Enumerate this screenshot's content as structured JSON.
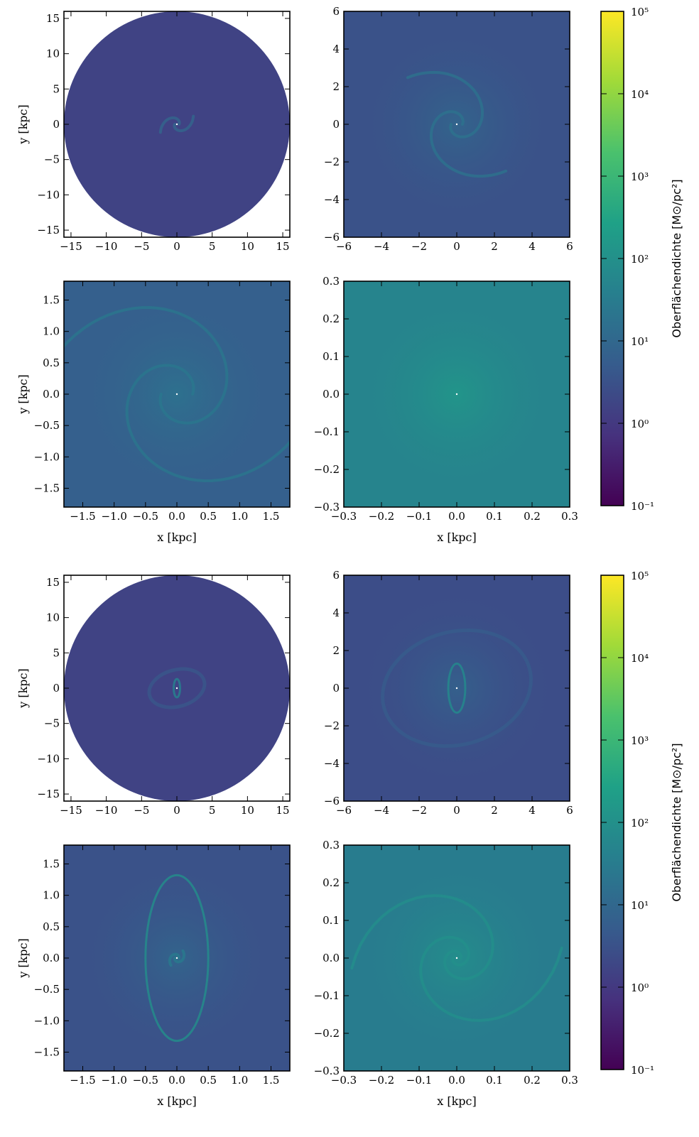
{
  "figure": {
    "colorbar_label": "Oberflächendichte [M⊙/pc²]",
    "colorbar_ticks": [
      "10⁻¹",
      "10⁰",
      "10¹",
      "10²",
      "10³",
      "10⁴",
      "10⁵"
    ],
    "colormap": [
      "#440154",
      "#46327e",
      "#365c8d",
      "#277f8e",
      "#1fa187",
      "#4ac16d",
      "#a0da39",
      "#fde725"
    ],
    "colorbar_range_log10": [
      -1,
      5
    ],
    "xlabel": "x [kpc]",
    "ylabel": "y [kpc]"
  },
  "chart_data": [
    {
      "type": "heatmap",
      "group": "top",
      "panel": "overview",
      "xlim": [
        -16,
        16
      ],
      "ylim": [
        -16,
        16
      ],
      "disk_radius": 16,
      "xticks": [
        -15,
        -10,
        -5,
        0,
        5,
        10,
        15
      ],
      "xtick_labels": [
        "−15",
        "−10",
        "−5",
        "0",
        "5",
        "10",
        "15"
      ],
      "yticks": [
        -15,
        -10,
        -5,
        0,
        5,
        10,
        15
      ],
      "ytick_labels": [
        "−15",
        "−10",
        "−5",
        "0",
        "5",
        "10",
        "15"
      ],
      "show_xlabel": false,
      "show_ylabel": true,
      "background_log10": 0.2,
      "features": [
        {
          "kind": "spiral",
          "arms": 2,
          "r_start": 0.3,
          "r_end": 2.6,
          "pitch": 0.6,
          "log10": 1.0
        }
      ]
    },
    {
      "type": "heatmap",
      "group": "top",
      "panel": "zoom-6kpc",
      "xlim": [
        -6,
        6
      ],
      "ylim": [
        -6,
        6
      ],
      "xticks": [
        -6,
        -4,
        -2,
        0,
        2,
        4,
        6
      ],
      "xtick_labels": [
        "−6",
        "−4",
        "−2",
        "0",
        "2",
        "4",
        "6"
      ],
      "yticks": [
        -6,
        -4,
        -2,
        0,
        2,
        4,
        6
      ],
      "ytick_labels": [
        "−6",
        "−4",
        "−2",
        "0",
        "2",
        "4",
        "6"
      ],
      "show_xlabel": false,
      "show_ylabel": false,
      "background_log10": 0.5,
      "features": [
        {
          "kind": "spiral",
          "arms": 2,
          "r_start": 0.3,
          "r_end": 3.6,
          "pitch": 0.45,
          "log10": 1.3
        }
      ]
    },
    {
      "type": "heatmap",
      "group": "top",
      "panel": "zoom-1.8kpc",
      "xlim": [
        -1.8,
        1.8
      ],
      "ylim": [
        -1.8,
        1.8
      ],
      "xticks": [
        -1.5,
        -1.0,
        -0.5,
        0.0,
        0.5,
        1.0,
        1.5
      ],
      "xtick_labels": [
        "−1.5",
        "−1.0",
        "−0.5",
        "0.0",
        "0.5",
        "1.0",
        "1.5"
      ],
      "yticks": [
        -1.5,
        -1.0,
        -0.5,
        0.0,
        0.5,
        1.0,
        1.5
      ],
      "ytick_labels": [
        "−1.5",
        "−1.0",
        "−0.5",
        "0.0",
        "0.5",
        "1.0",
        "1.5"
      ],
      "show_xlabel": true,
      "show_ylabel": true,
      "background_log10": 0.8,
      "features": [
        {
          "kind": "spiral",
          "arms": 2,
          "r_start": 0.25,
          "r_end": 2.5,
          "pitch": 0.35,
          "log10": 1.4
        }
      ]
    },
    {
      "type": "heatmap",
      "group": "top",
      "panel": "zoom-0.3kpc",
      "xlim": [
        -0.3,
        0.3
      ],
      "ylim": [
        -0.3,
        0.3
      ],
      "xticks": [
        -0.3,
        -0.2,
        -0.1,
        0.0,
        0.1,
        0.2,
        0.3
      ],
      "xtick_labels": [
        "−0.3",
        "−0.2",
        "−0.1",
        "0.0",
        "0.1",
        "0.2",
        "0.3"
      ],
      "yticks": [
        -0.3,
        -0.2,
        -0.1,
        0.0,
        0.1,
        0.2,
        0.3
      ],
      "ytick_labels": [
        "−0.3",
        "−0.2",
        "−0.1",
        "0.0",
        "0.1",
        "0.2",
        "0.3"
      ],
      "show_xlabel": true,
      "show_ylabel": false,
      "background_log10": 1.7,
      "features": []
    },
    {
      "type": "heatmap",
      "group": "bottom",
      "panel": "overview",
      "xlim": [
        -16,
        16
      ],
      "ylim": [
        -16,
        16
      ],
      "disk_radius": 16,
      "xticks": [
        -15,
        -10,
        -5,
        0,
        5,
        10,
        15
      ],
      "xtick_labels": [
        "−15",
        "−10",
        "−5",
        "0",
        "5",
        "10",
        "15"
      ],
      "yticks": [
        -15,
        -10,
        -5,
        0,
        5,
        10,
        15
      ],
      "ytick_labels": [
        "−15",
        "−10",
        "−5",
        "0",
        "5",
        "10",
        "15"
      ],
      "show_xlabel": false,
      "show_ylabel": true,
      "background_log10": 0.2,
      "features": [
        {
          "kind": "ellipse",
          "rx": 0.45,
          "ry": 1.3,
          "log10": 1.6
        },
        {
          "kind": "ring",
          "rx": 4.0,
          "ry": 2.6,
          "log10": 0.9
        }
      ]
    },
    {
      "type": "heatmap",
      "group": "bottom",
      "panel": "zoom-6kpc",
      "xlim": [
        -6,
        6
      ],
      "ylim": [
        -6,
        6
      ],
      "xticks": [
        -6,
        -4,
        -2,
        0,
        2,
        4,
        6
      ],
      "xtick_labels": [
        "−6",
        "−4",
        "−2",
        "0",
        "2",
        "4",
        "6"
      ],
      "yticks": [
        -6,
        -4,
        -2,
        0,
        2,
        4,
        6
      ],
      "ytick_labels": [
        "−6",
        "−4",
        "−2",
        "0",
        "2",
        "4",
        "6"
      ],
      "show_xlabel": false,
      "show_ylabel": false,
      "background_log10": 0.4,
      "features": [
        {
          "kind": "ellipse",
          "rx": 0.45,
          "ry": 1.3,
          "log10": 1.8
        },
        {
          "kind": "ring",
          "rx": 4.0,
          "ry": 3.0,
          "log10": 0.9
        }
      ]
    },
    {
      "type": "heatmap",
      "group": "bottom",
      "panel": "zoom-1.8kpc",
      "xlim": [
        -1.8,
        1.8
      ],
      "ylim": [
        -1.8,
        1.8
      ],
      "xticks": [
        -1.5,
        -1.0,
        -0.5,
        0.0,
        0.5,
        1.0,
        1.5
      ],
      "xtick_labels": [
        "−1.5",
        "−1.0",
        "−0.5",
        "0.0",
        "0.5",
        "1.0",
        "1.5"
      ],
      "yticks": [
        -1.5,
        -1.0,
        -0.5,
        0.0,
        0.5,
        1.0,
        1.5
      ],
      "ytick_labels": [
        "−1.5",
        "−1.0",
        "−0.5",
        "0.0",
        "0.5",
        "1.0",
        "1.5"
      ],
      "show_xlabel": true,
      "show_ylabel": true,
      "background_log10": 0.5,
      "features": [
        {
          "kind": "ellipse",
          "rx": 0.5,
          "ry": 1.32,
          "log10": 1.9
        },
        {
          "kind": "spiral",
          "arms": 2,
          "r_start": 0.03,
          "r_end": 0.15,
          "pitch": 0.4,
          "log10": 1.5
        }
      ]
    },
    {
      "type": "heatmap",
      "group": "bottom",
      "panel": "zoom-0.3kpc",
      "xlim": [
        -0.3,
        0.3
      ],
      "ylim": [
        -0.3,
        0.3
      ],
      "xticks": [
        -0.3,
        -0.2,
        -0.1,
        0.0,
        0.1,
        0.2,
        0.3
      ],
      "xtick_labels": [
        "−0.3",
        "−0.2",
        "−0.1",
        "0.0",
        "0.1",
        "0.2",
        "0.3"
      ],
      "yticks": [
        -0.3,
        -0.2,
        -0.1,
        0.0,
        0.1,
        0.2,
        0.3
      ],
      "ytick_labels": [
        "−0.3",
        "−0.2",
        "−0.1",
        "0.0",
        "0.1",
        "0.2",
        "0.3"
      ],
      "show_xlabel": true,
      "show_ylabel": false,
      "background_log10": 1.5,
      "features": [
        {
          "kind": "spiral",
          "arms": 2,
          "r_start": 0.01,
          "r_end": 0.28,
          "pitch": 0.35,
          "log10": 2.0
        }
      ]
    }
  ]
}
